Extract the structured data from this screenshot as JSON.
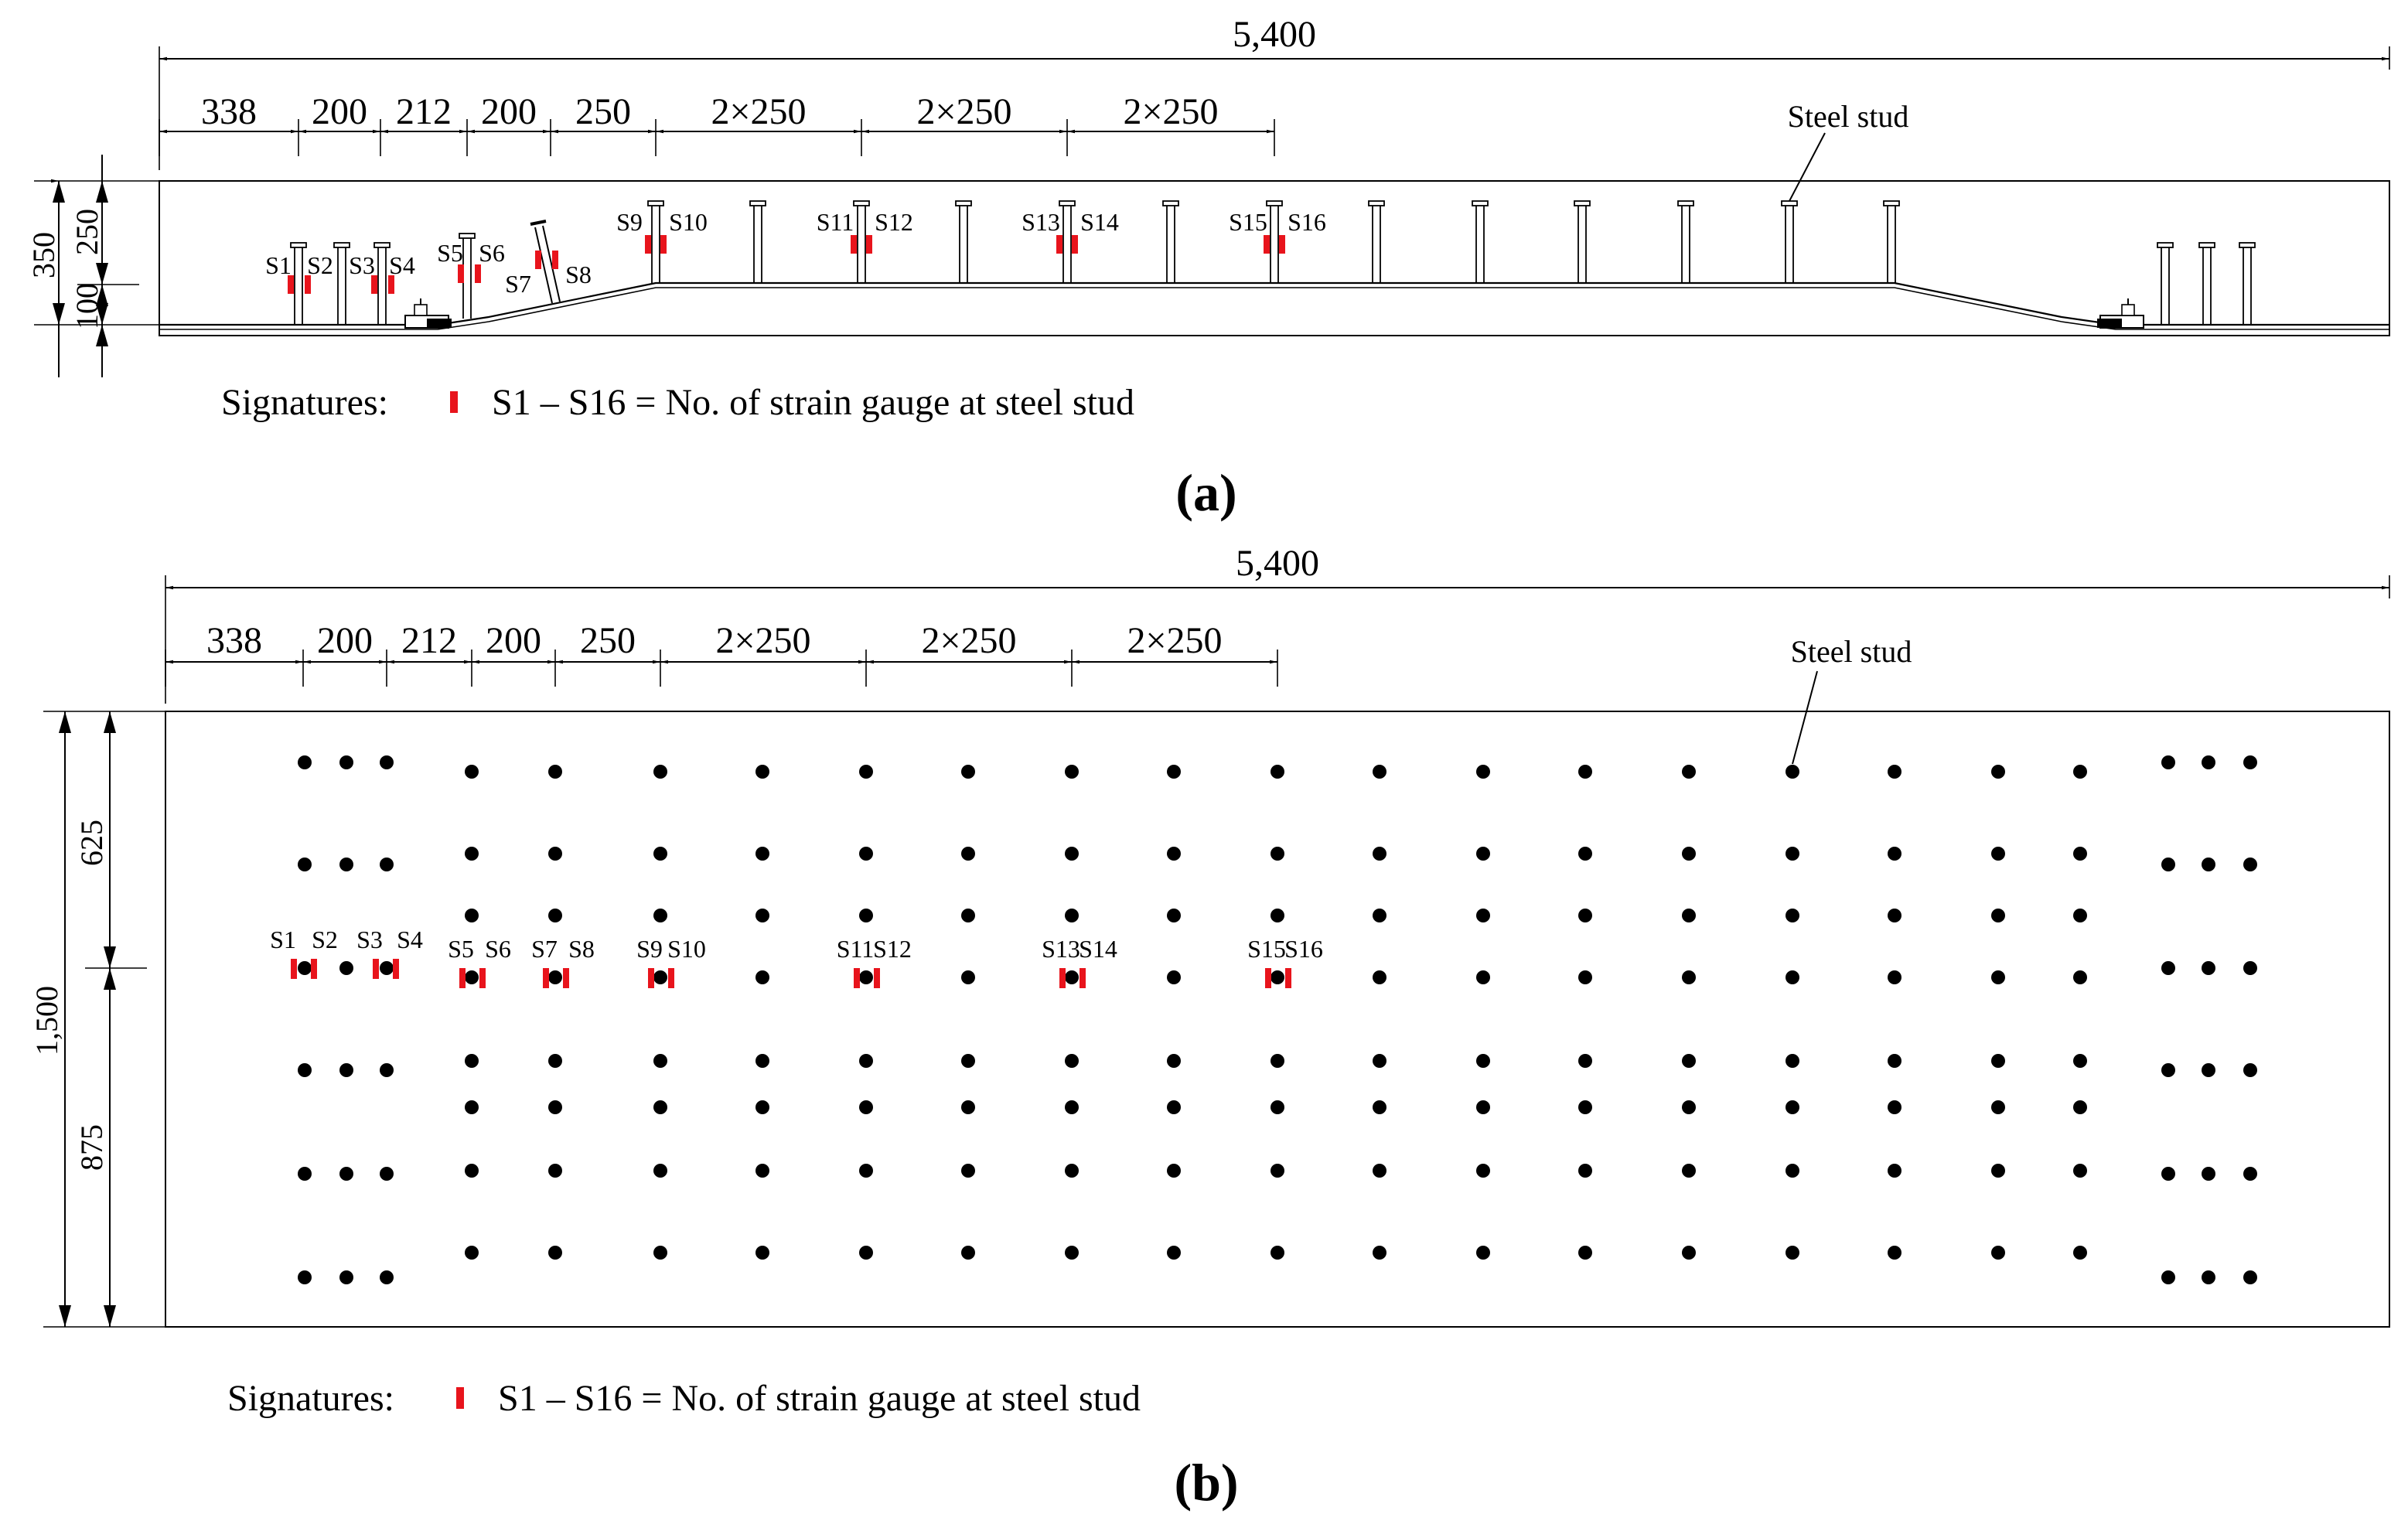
{
  "panel_a": {
    "label": "(a)",
    "overall_dim": "5,400",
    "dims": [
      "338",
      "200",
      "212",
      "200",
      "250",
      "2×250",
      "2×250",
      "2×250"
    ],
    "vdims": [
      "350",
      "250",
      "100"
    ],
    "callout": "Steel stud",
    "gauges": [
      "S1",
      "S2",
      "S3",
      "S4",
      "S5",
      "S6",
      "S7",
      "S8",
      "S9",
      "S10",
      "S11",
      "S12",
      "S13",
      "S14",
      "S15",
      "S16"
    ],
    "legend_prefix": "Signatures:",
    "legend_text": "S1 – S16 = No. of strain gauge at steel stud"
  },
  "panel_b": {
    "label": "(b)",
    "overall_dim": "5,400",
    "dims": [
      "338",
      "200",
      "212",
      "200",
      "250",
      "2×250",
      "2×250",
      "2×250"
    ],
    "vdims": [
      "1,500",
      "625",
      "875"
    ],
    "callout": "Steel stud",
    "gauges": [
      "S1",
      "S2",
      "S3",
      "S4",
      "S5",
      "S6",
      "S7",
      "S8",
      "S9",
      "S10",
      "S11",
      "S12",
      "S13",
      "S14",
      "S15",
      "S16"
    ],
    "legend_prefix": "Signatures:",
    "legend_text": "S1 – S16 = No. of strain gauge at steel stud"
  },
  "colors": {
    "gauge": "#e8141c",
    "line": "#000000",
    "stud": "#000000"
  }
}
